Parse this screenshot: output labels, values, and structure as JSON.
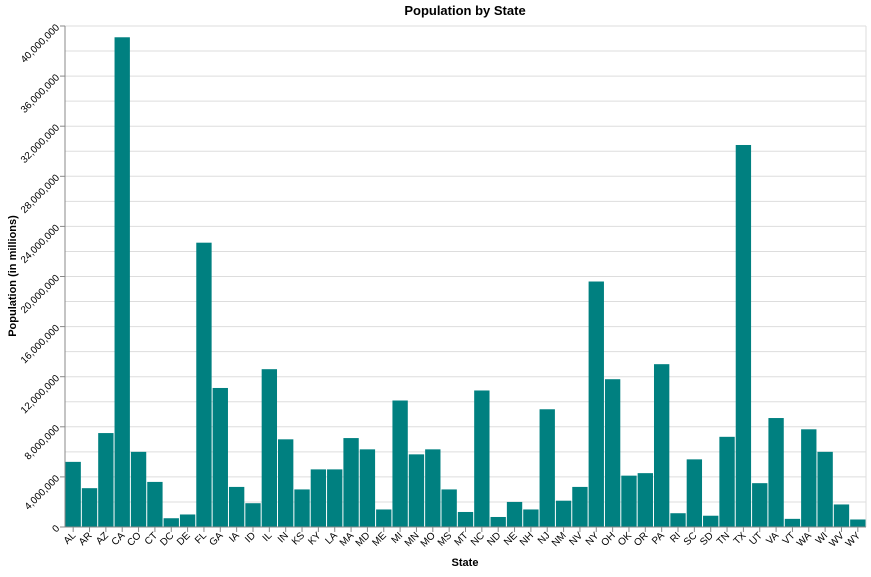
{
  "chart_data": {
    "type": "bar",
    "title": "Population by State",
    "xlabel": "State",
    "ylabel": "Population (in millions)",
    "ylim": [
      0,
      40000000
    ],
    "grid": true,
    "bar_color": "#008080",
    "y_ticks": [
      0,
      4000000,
      8000000,
      12000000,
      16000000,
      20000000,
      24000000,
      28000000,
      32000000,
      36000000,
      40000000
    ],
    "y_tick_labels": [
      "0",
      "4,000,000",
      "8,000,000",
      "12,000,000",
      "16,000,000",
      "20,000,000",
      "24,000,000",
      "28,000,000",
      "32,000,000",
      "36,000,000",
      "40,000,000"
    ],
    "categories": [
      "AL",
      "AR",
      "AZ",
      "CA",
      "CO",
      "CT",
      "DC",
      "DE",
      "FL",
      "GA",
      "IA",
      "ID",
      "IL",
      "IN",
      "KS",
      "KY",
      "LA",
      "MA",
      "MD",
      "ME",
      "MI",
      "MN",
      "MO",
      "MS",
      "MT",
      "NC",
      "ND",
      "NE",
      "NH",
      "NJ",
      "NM",
      "NV",
      "NY",
      "OH",
      "OK",
      "OR",
      "PA",
      "RI",
      "SC",
      "SD",
      "TN",
      "TX",
      "UT",
      "VA",
      "VT",
      "WA",
      "WI",
      "WV",
      "WY"
    ],
    "values": [
      5200000,
      3100000,
      7500000,
      39100000,
      6000000,
      3600000,
      700000,
      1000000,
      22700000,
      11100000,
      3200000,
      1900000,
      12600000,
      7000000,
      3000000,
      4600000,
      4600000,
      7100000,
      6200000,
      1400000,
      10100000,
      5800000,
      6200000,
      3000000,
      1200000,
      10900000,
      800000,
      2000000,
      1400000,
      9400000,
      2100000,
      3200000,
      19600000,
      11800000,
      4100000,
      4300000,
      13000000,
      1100000,
      5400000,
      900000,
      7200000,
      30500000,
      3500000,
      8700000,
      650000,
      7800000,
      6000000,
      1800000,
      600000
    ]
  }
}
